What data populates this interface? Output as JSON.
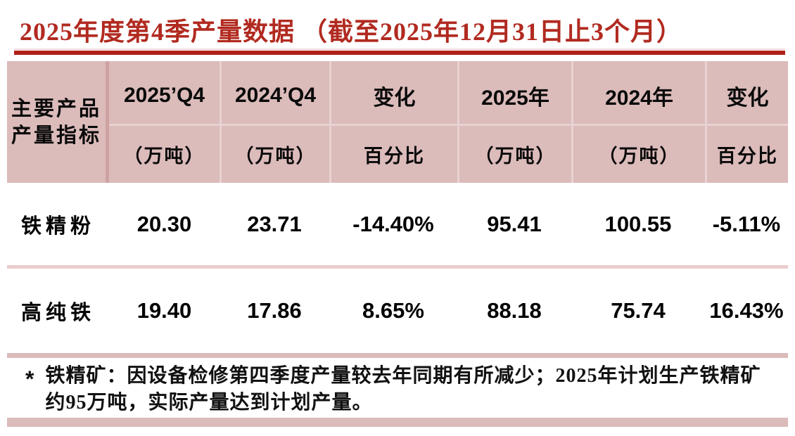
{
  "title": "2025年度第4季产量数据  （截至2025年12月31日止3个月）",
  "colors": {
    "title_red": "#B12A20",
    "rule_red": "#AE2119",
    "header_pink": "#DCBBBB",
    "dark_divider_pink": "#CFA2A2",
    "light_divider_pink": "#E9D2D2",
    "row_divider_pink": "#EBCCCC",
    "bar_pink": "#DCBBBB",
    "text_black": "#000000"
  },
  "table": {
    "corner_header": {
      "line1": "主要产品",
      "line2": "产量指标"
    },
    "columns": [
      {
        "label": "2025’Q4",
        "sublabel": "（万吨）"
      },
      {
        "label": "2024’Q4",
        "sublabel": "（万吨）"
      },
      {
        "label": "变化",
        "sublabel": "百分比"
      },
      {
        "label": "2025年",
        "sublabel": "（万吨）"
      },
      {
        "label": "2024年",
        "sublabel": "（万吨）"
      },
      {
        "label": "变化",
        "sublabel": "百分比"
      }
    ],
    "rows": [
      {
        "product": "铁精粉",
        "values": [
          "20.30",
          "23.71",
          "-14.40%",
          "95.41",
          "100.55",
          "-5.11%"
        ]
      },
      {
        "product": "高纯铁",
        "values": [
          "19.40",
          "17.86",
          "8.65%",
          "88.18",
          "75.74",
          "16.43%"
        ]
      }
    ]
  },
  "footnote": {
    "marker": "*",
    "line1": "铁精矿：因设备检修第四季度产量较去年同期有所减少；2025年计划生产铁精矿",
    "line2": "约95万吨，实际产量达到计划产量。"
  }
}
